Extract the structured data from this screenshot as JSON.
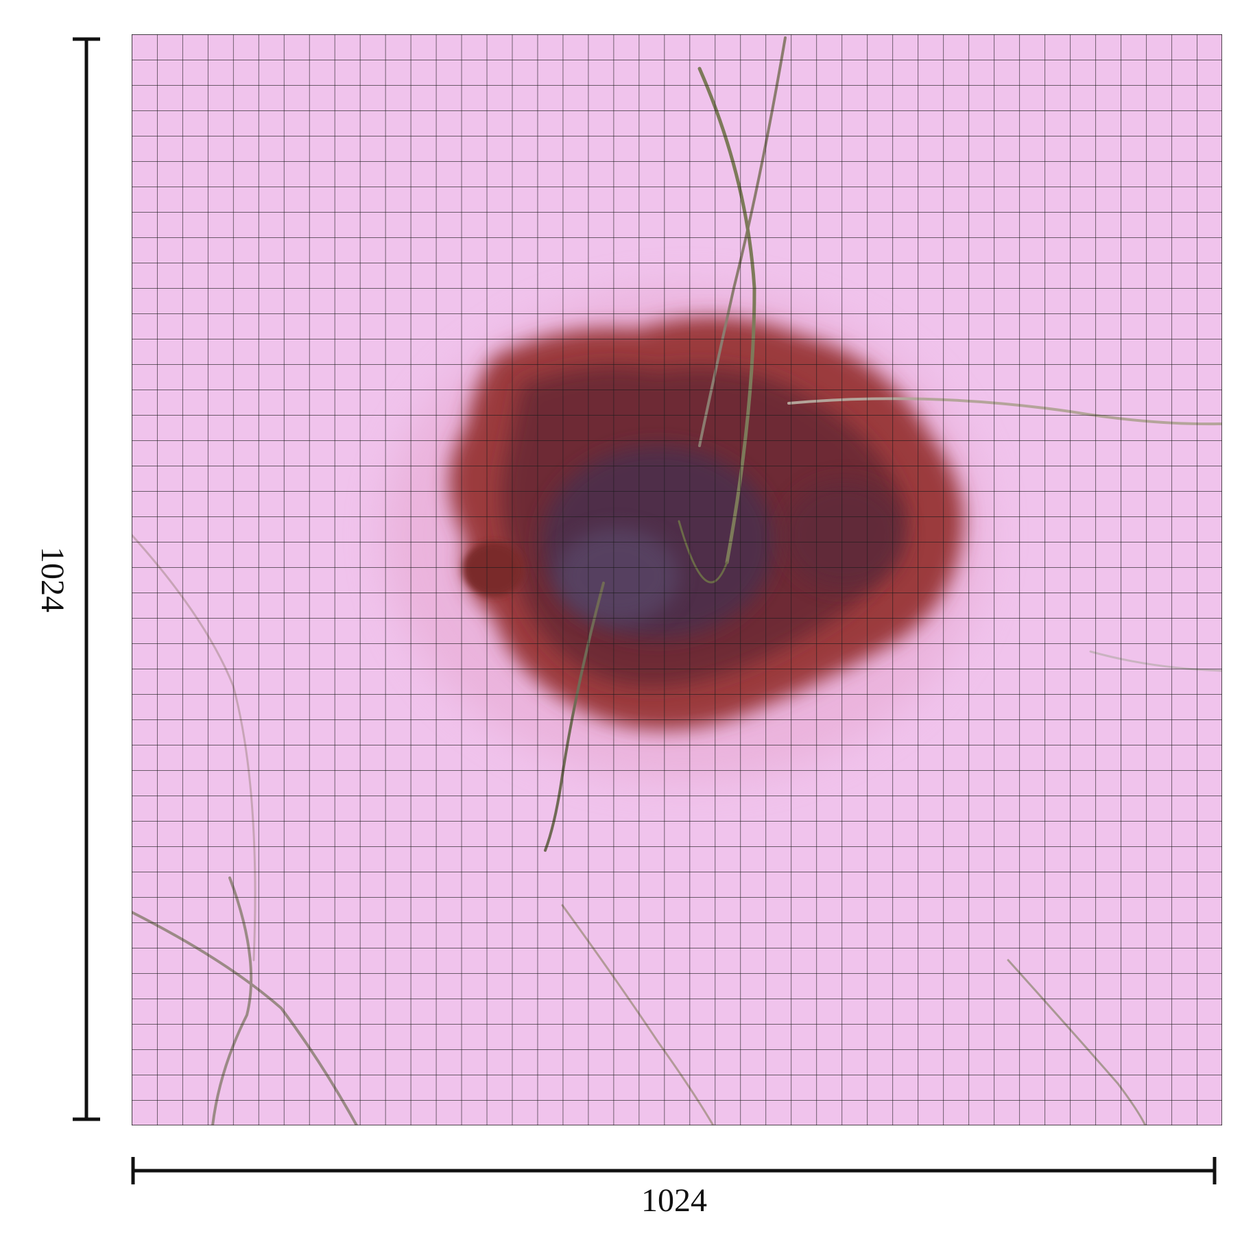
{
  "labels": {
    "height": "1024",
    "width": "1024"
  }
}
